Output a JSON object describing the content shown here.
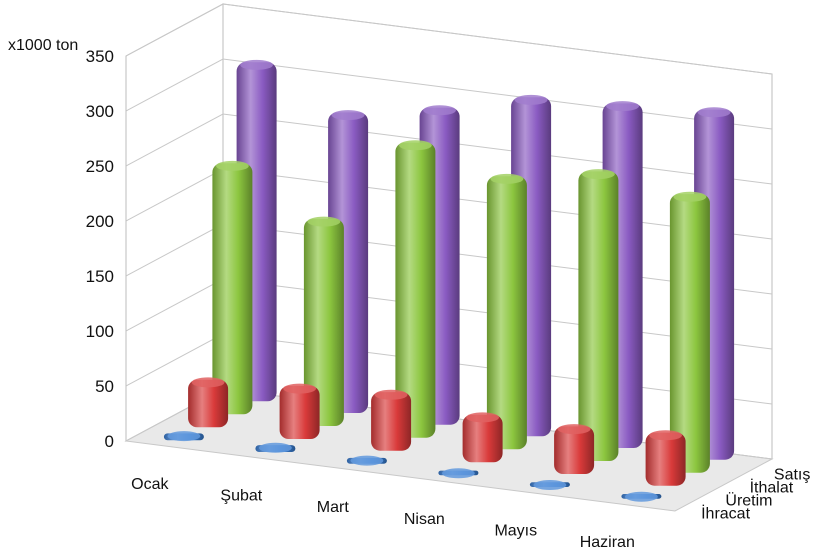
{
  "chart_data": {
    "type": "bar",
    "three_d": true,
    "unit": "x1000 ton",
    "categories": [
      "Ocak",
      "Şubat",
      "Mart",
      "Nisan",
      "Mayıs",
      "Haziran"
    ],
    "series": [
      {
        "name": "İhracat",
        "color": "#3a7fd5",
        "values": [
          3,
          3,
          2,
          1,
          1,
          1
        ]
      },
      {
        "name": "Üretim",
        "color": "#d93a3a",
        "values": [
          40,
          45,
          50,
          40,
          40,
          45
        ]
      },
      {
        "name": "İthalat",
        "color": "#8cc63f",
        "values": [
          225,
          185,
          265,
          245,
          260,
          250
        ]
      },
      {
        "name": "Satış",
        "color": "#8a5bc2",
        "values": [
          305,
          270,
          285,
          305,
          310,
          315
        ]
      }
    ],
    "ylim": [
      0,
      350
    ],
    "yticks": [
      "0",
      "50",
      "100",
      "150",
      "200",
      "250",
      "300",
      "350"
    ],
    "grid": true,
    "legend": "none"
  }
}
